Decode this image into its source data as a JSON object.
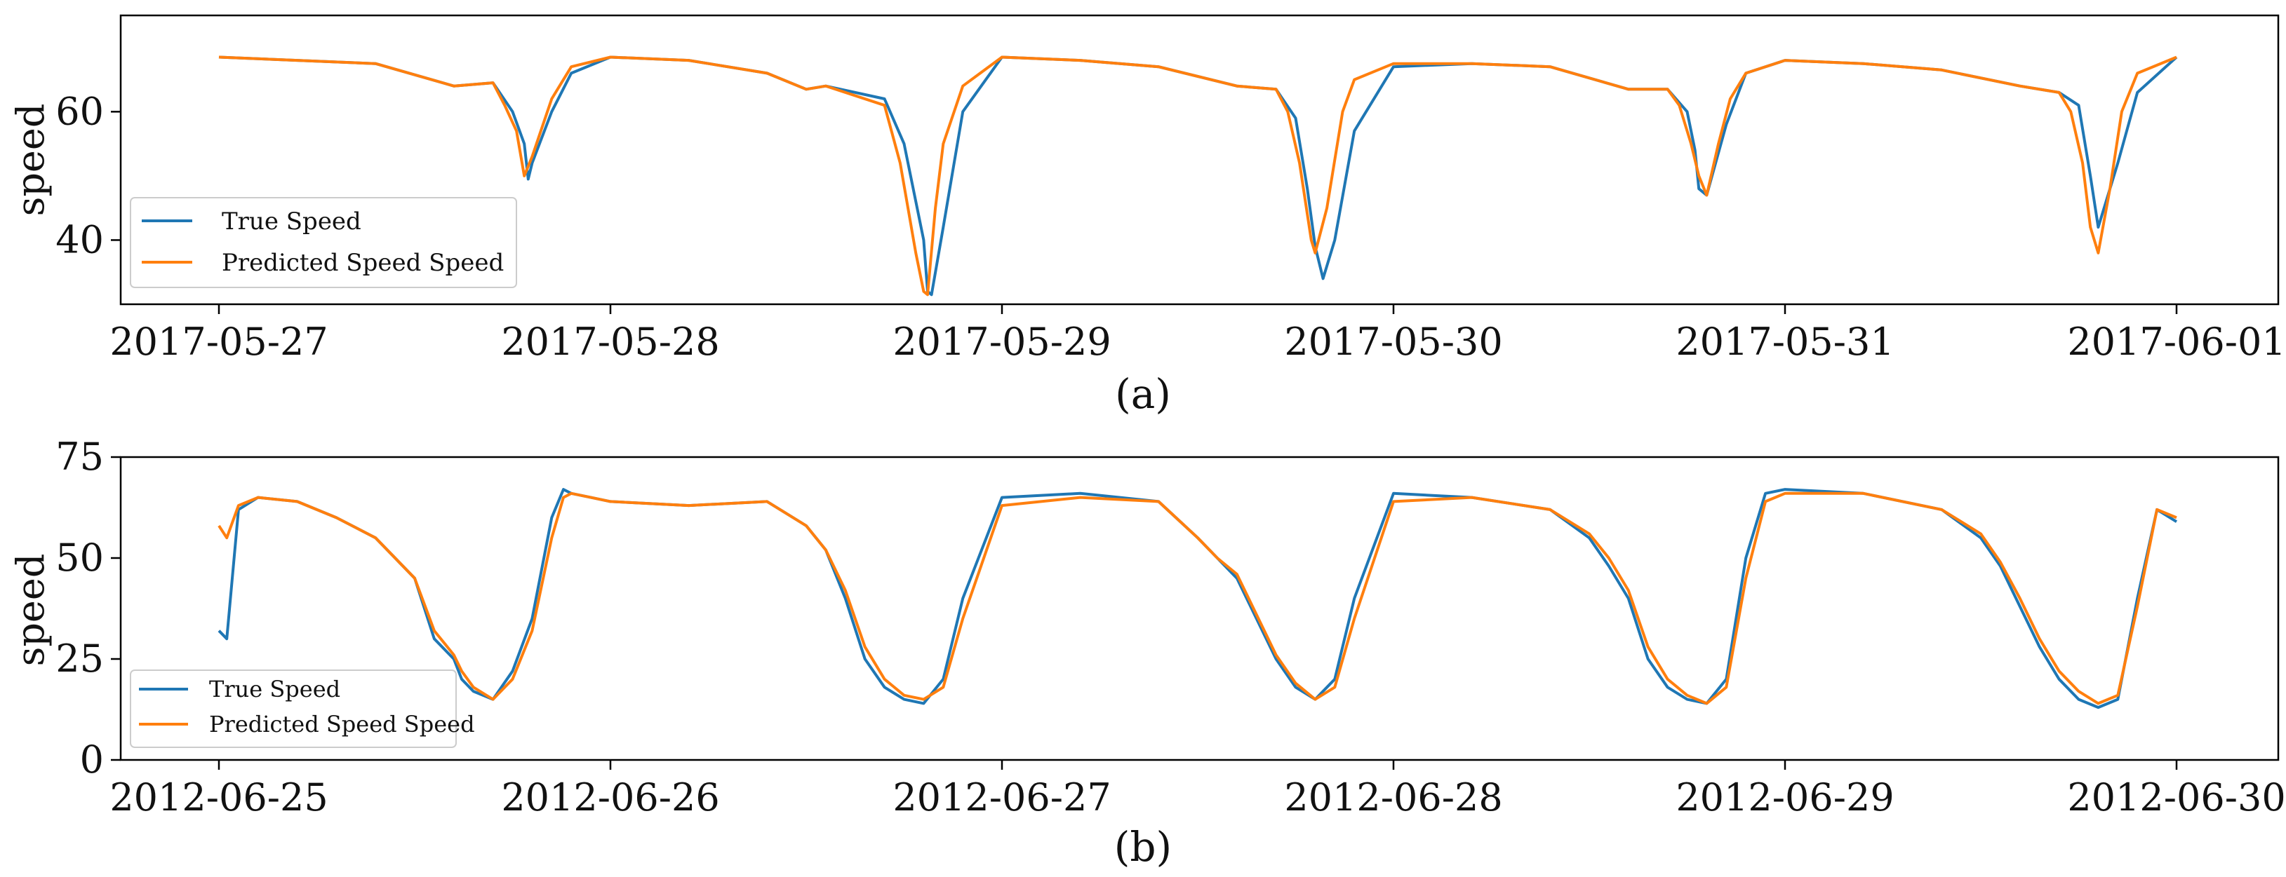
{
  "colors": {
    "true_speed": "#1f77b4",
    "predicted_speed": "#ff7f0e",
    "axes": "#000000",
    "background": "#ffffff"
  },
  "chart_data": [
    {
      "type": "line",
      "caption": "(a)",
      "ylabel": "speed",
      "xlabel": "",
      "grid": false,
      "legend_position": "lower-left",
      "x_range": [
        "2017-05-27",
        "2017-06-01"
      ],
      "x_ticks": [
        "2017-05-27",
        "2017-05-28",
        "2017-05-29",
        "2017-05-30",
        "2017-05-31",
        "2017-06-01"
      ],
      "ylim": [
        30,
        75
      ],
      "y_ticks": [
        40,
        60
      ],
      "x_units": "days since 2017-05-27 00:00",
      "series": [
        {
          "name": "True Speed",
          "color": "#1f77b4",
          "x": [
            0,
            0.2,
            0.4,
            0.6,
            0.7,
            0.75,
            0.78,
            0.79,
            0.8,
            0.85,
            0.9,
            1.0,
            1.2,
            1.4,
            1.5,
            1.55,
            1.7,
            1.75,
            1.8,
            1.81,
            1.82,
            1.85,
            1.9,
            2.0,
            2.2,
            2.4,
            2.6,
            2.7,
            2.75,
            2.78,
            2.8,
            2.82,
            2.85,
            2.9,
            3.0,
            3.2,
            3.4,
            3.6,
            3.7,
            3.75,
            3.77,
            3.78,
            3.8,
            3.85,
            3.9,
            4.0,
            4.2,
            4.4,
            4.6,
            4.7,
            4.75,
            4.78,
            4.8,
            4.85,
            4.9,
            5.0
          ],
          "y": [
            68.5,
            68,
            67.5,
            64,
            64.5,
            60,
            55,
            49.5,
            52,
            60,
            66,
            68.5,
            68,
            66,
            63.5,
            64,
            62,
            55,
            40,
            32,
            31.5,
            42,
            60,
            68.5,
            68,
            67,
            64,
            63.5,
            59,
            48,
            39,
            34,
            40,
            57,
            67,
            67.5,
            67,
            63.5,
            63.5,
            60,
            54,
            48,
            47,
            58,
            66,
            68,
            67.5,
            66.5,
            64,
            63,
            61,
            50,
            42,
            52,
            63,
            68.5
          ]
        },
        {
          "name": "Predicted Speed Speed",
          "color": "#ff7f0e",
          "x": [
            0,
            0.2,
            0.4,
            0.6,
            0.7,
            0.73,
            0.76,
            0.78,
            0.8,
            0.85,
            0.9,
            1.0,
            1.2,
            1.4,
            1.5,
            1.55,
            1.7,
            1.74,
            1.78,
            1.8,
            1.81,
            1.83,
            1.85,
            1.9,
            2.0,
            2.2,
            2.4,
            2.6,
            2.7,
            2.73,
            2.76,
            2.79,
            2.8,
            2.83,
            2.87,
            2.9,
            3.0,
            3.2,
            3.4,
            3.6,
            3.7,
            3.73,
            3.76,
            3.78,
            3.8,
            3.83,
            3.86,
            3.9,
            4.0,
            4.2,
            4.4,
            4.6,
            4.7,
            4.73,
            4.76,
            4.78,
            4.8,
            4.83,
            4.86,
            4.9,
            5.0
          ],
          "y": [
            68.5,
            68,
            67.5,
            64,
            64.5,
            61,
            57,
            50,
            53,
            62,
            67,
            68.5,
            68,
            66,
            63.5,
            64,
            61,
            52,
            38,
            32,
            31.5,
            45,
            55,
            64,
            68.5,
            68,
            67,
            64,
            63.5,
            60,
            52,
            40,
            38,
            45,
            60,
            65,
            67.5,
            67.5,
            67,
            63.5,
            63.5,
            61,
            55,
            50,
            47,
            55,
            62,
            66,
            68,
            67.5,
            66.5,
            64,
            63,
            60,
            52,
            42,
            38,
            48,
            60,
            66,
            68.5
          ]
        }
      ]
    },
    {
      "type": "line",
      "caption": "(b)",
      "ylabel": "speed",
      "xlabel": "",
      "grid": false,
      "legend_position": "lower-left",
      "x_range": [
        "2012-06-25",
        "2012-06-30"
      ],
      "x_ticks": [
        "2012-06-25",
        "2012-06-26",
        "2012-06-27",
        "2012-06-28",
        "2012-06-29",
        "2012-06-30"
      ],
      "ylim": [
        0,
        75
      ],
      "y_ticks": [
        0,
        25,
        50,
        75
      ],
      "x_units": "days since 2012-06-25 00:00",
      "series": [
        {
          "name": "True Speed",
          "color": "#1f77b4",
          "x": [
            0,
            0.02,
            0.05,
            0.1,
            0.2,
            0.3,
            0.4,
            0.5,
            0.55,
            0.6,
            0.62,
            0.65,
            0.7,
            0.75,
            0.8,
            0.85,
            0.88,
            0.9,
            0.95,
            1.0,
            1.2,
            1.4,
            1.5,
            1.55,
            1.6,
            1.65,
            1.7,
            1.75,
            1.8,
            1.85,
            1.9,
            2.0,
            2.2,
            2.4,
            2.5,
            2.55,
            2.6,
            2.65,
            2.7,
            2.75,
            2.8,
            2.85,
            2.9,
            3.0,
            3.2,
            3.4,
            3.5,
            3.55,
            3.6,
            3.65,
            3.7,
            3.75,
            3.8,
            3.85,
            3.9,
            3.95,
            4.0,
            4.2,
            4.4,
            4.5,
            4.55,
            4.6,
            4.65,
            4.7,
            4.75,
            4.8,
            4.85,
            4.9,
            4.95,
            5.0
          ],
          "y": [
            32,
            30,
            62,
            65,
            64,
            60,
            55,
            45,
            30,
            25,
            20,
            17,
            15,
            22,
            35,
            60,
            67,
            66,
            65,
            64,
            63,
            64,
            58,
            52,
            40,
            25,
            18,
            15,
            14,
            20,
            40,
            65,
            66,
            64,
            55,
            50,
            45,
            35,
            25,
            18,
            15,
            20,
            40,
            66,
            65,
            62,
            55,
            48,
            40,
            25,
            18,
            15,
            14,
            20,
            50,
            66,
            67,
            66,
            62,
            55,
            48,
            38,
            28,
            20,
            15,
            13,
            15,
            40,
            62,
            59
          ]
        },
        {
          "name": "Predicted Speed Speed",
          "color": "#ff7f0e",
          "x": [
            0,
            0.02,
            0.05,
            0.1,
            0.2,
            0.3,
            0.4,
            0.5,
            0.55,
            0.6,
            0.62,
            0.65,
            0.7,
            0.75,
            0.8,
            0.85,
            0.88,
            0.9,
            0.95,
            1.0,
            1.2,
            1.4,
            1.5,
            1.55,
            1.6,
            1.65,
            1.7,
            1.75,
            1.8,
            1.85,
            1.9,
            2.0,
            2.2,
            2.4,
            2.5,
            2.55,
            2.6,
            2.65,
            2.7,
            2.75,
            2.8,
            2.85,
            2.9,
            3.0,
            3.2,
            3.4,
            3.5,
            3.55,
            3.6,
            3.65,
            3.7,
            3.75,
            3.8,
            3.85,
            3.9,
            3.95,
            4.0,
            4.2,
            4.4,
            4.5,
            4.55,
            4.6,
            4.65,
            4.7,
            4.75,
            4.8,
            4.85,
            4.9,
            4.95,
            5.0
          ],
          "y": [
            58,
            55,
            63,
            65,
            64,
            60,
            55,
            45,
            32,
            26,
            22,
            18,
            15,
            20,
            32,
            55,
            65,
            66,
            65,
            64,
            63,
            64,
            58,
            52,
            42,
            28,
            20,
            16,
            15,
            18,
            35,
            63,
            65,
            64,
            55,
            50,
            46,
            36,
            26,
            19,
            15,
            18,
            35,
            64,
            65,
            62,
            56,
            50,
            42,
            28,
            20,
            16,
            14,
            18,
            45,
            64,
            66,
            66,
            62,
            56,
            49,
            40,
            30,
            22,
            17,
            14,
            16,
            38,
            62,
            60
          ]
        }
      ]
    }
  ]
}
